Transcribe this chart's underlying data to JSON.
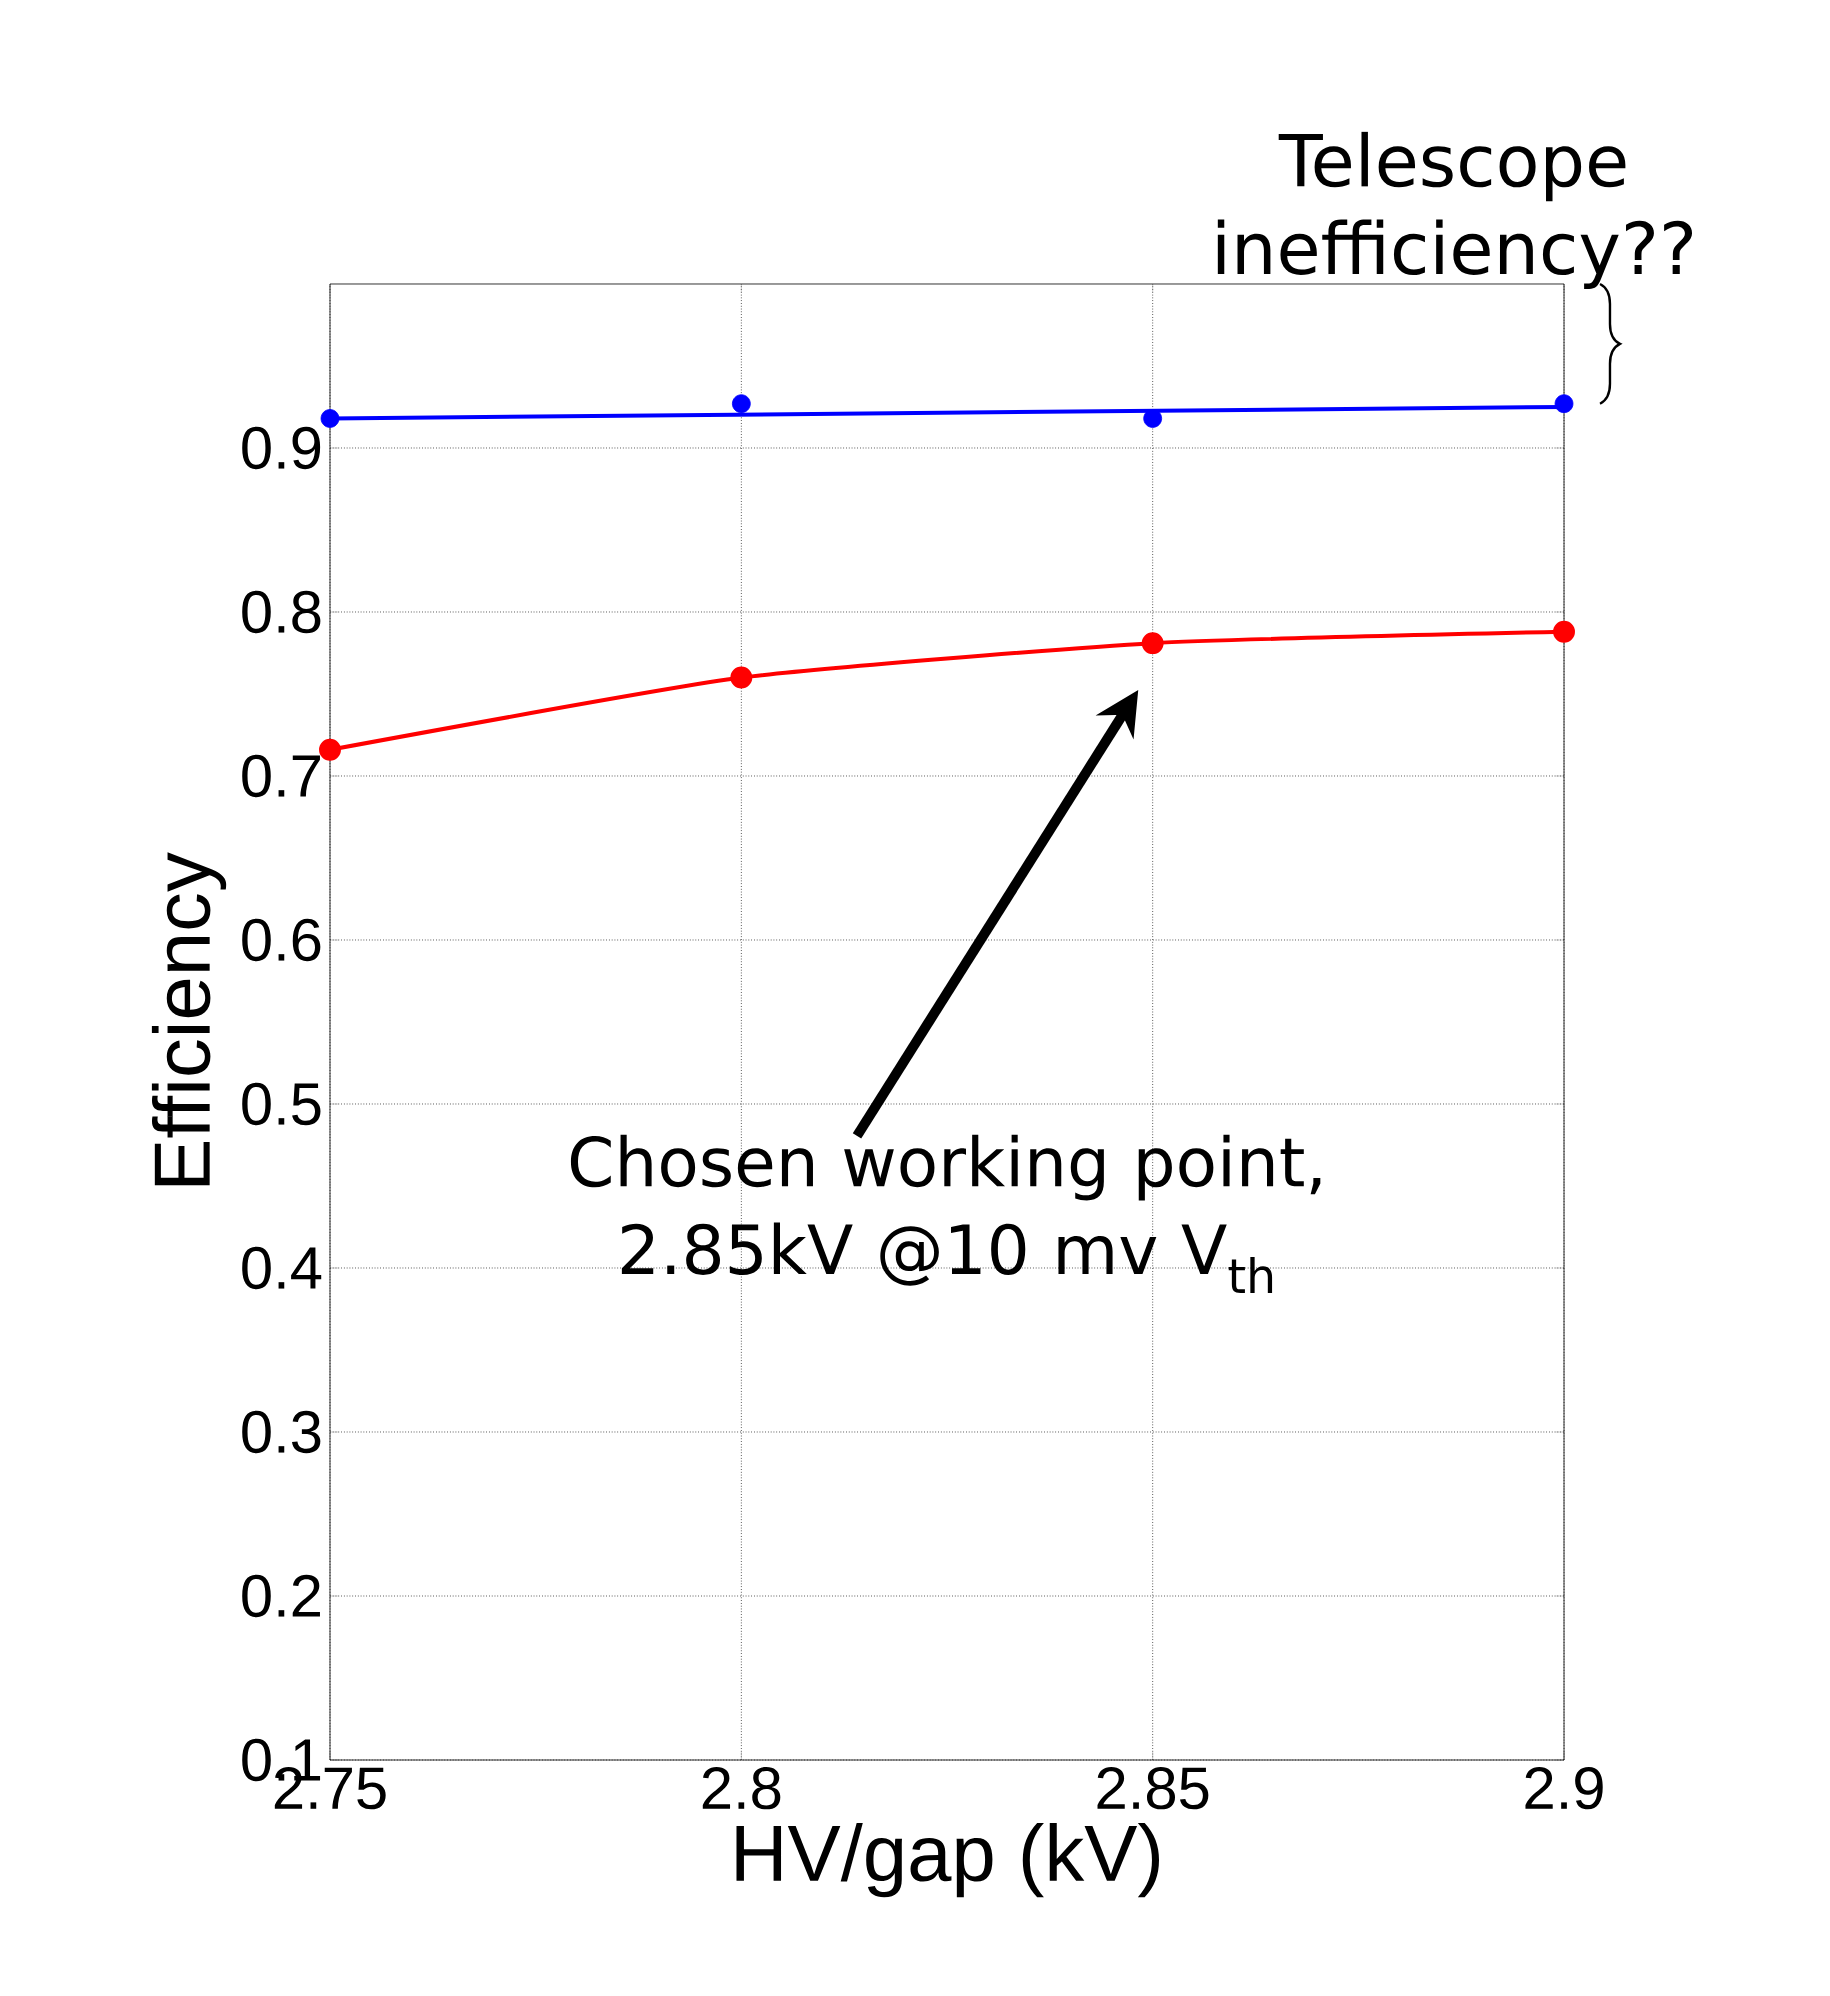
{
  "chart_data": {
    "type": "line",
    "xlabel": "HV/gap (kV)",
    "ylabel": "Efficiency",
    "x": [
      2.75,
      2.8,
      2.85,
      2.9
    ],
    "series": [
      {
        "type": "scatter",
        "color": "#0000ff",
        "marker": "circle",
        "values": [
          0.918,
          0.927,
          0.918,
          0.927
        ]
      },
      {
        "color": "#0000ff",
        "marker": "none",
        "x": [
          2.75,
          2.9
        ],
        "values": [
          0.918,
          0.925
        ]
      },
      {
        "color": "#ff0000",
        "marker": "circle",
        "values": [
          0.716,
          0.76,
          0.781,
          0.788
        ]
      }
    ],
    "xlim": [
      2.75,
      2.9
    ],
    "xticks": [
      2.75,
      2.8,
      2.85,
      2.9
    ],
    "ylim": [
      0.1,
      1.0
    ],
    "yticks": [
      0.1,
      0.2,
      0.3,
      0.4,
      0.5,
      0.6,
      0.7,
      0.8,
      0.9
    ],
    "grid": true,
    "annotations": [
      "Telescope inefficiency??",
      "Chosen working point, 2.85kV @10 mv V$_{th}$"
    ]
  }
}
